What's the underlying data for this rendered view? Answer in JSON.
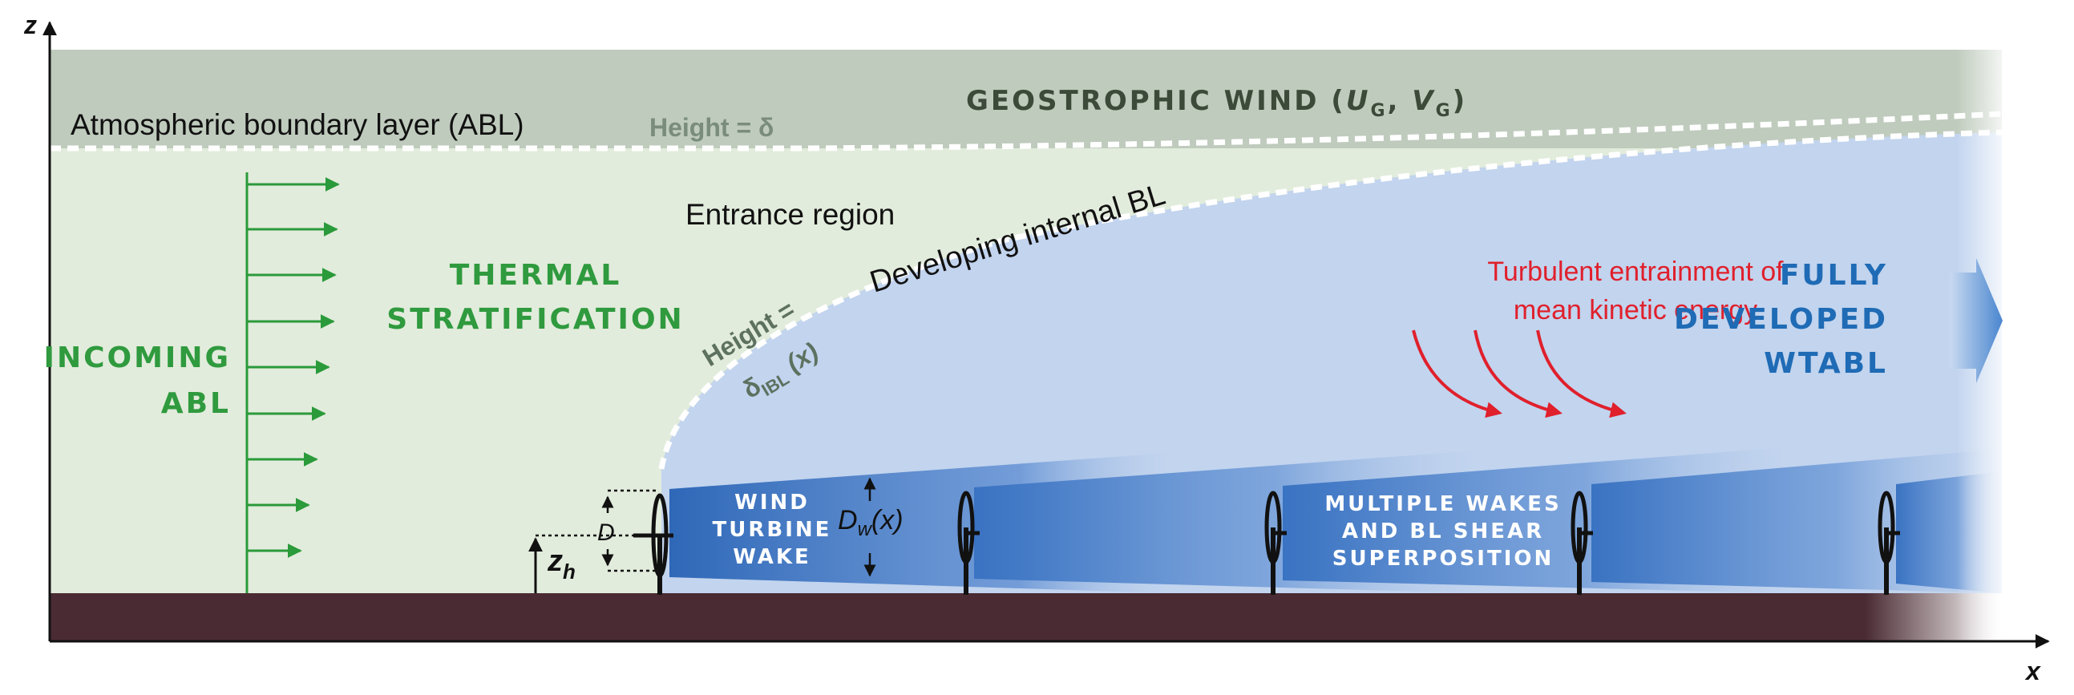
{
  "axes": {
    "z_label": "z",
    "x_label": "x"
  },
  "labels": {
    "geostrophic_wind": "GEOSTROPHIC WIND (",
    "geo_u": "U",
    "geo_u_sub": "G",
    "geo_comma": ", ",
    "geo_v": "V",
    "geo_v_sub": "G",
    "geo_close": ")",
    "abl": "Atmospheric boundary layer (ABL)",
    "height_delta": "Height = δ",
    "entrance_region": "Entrance region",
    "developing_ibl": "Developing internal BL",
    "height_ibl_line1": "Height =",
    "height_ibl_delta": "δ",
    "height_ibl_sub": "IBL",
    "height_ibl_x": " (x)",
    "thermal_line1": "THERMAL",
    "thermal_line2": "STRATIFICATION",
    "incoming_line1": "INCOMING",
    "incoming_line2": "ABL",
    "turbulent_line1": "Turbulent entrainment of",
    "turbulent_line2": "mean kinetic energy",
    "fully_line1": "FULLY",
    "fully_line2": "DEVELOPED",
    "fully_line3": "WTABL",
    "wake_line1": "WIND",
    "wake_line2": "TURBINE",
    "wake_line3": "WAKE",
    "dw_main": "D",
    "dw_sub": "w",
    "dw_x": "(x)",
    "multi_line1": "MULTIPLE WAKES",
    "multi_line2": "AND BL SHEAR",
    "multi_line3": "SUPERPOSITION",
    "d_label": "D",
    "zh_main": "z",
    "zh_sub": "h"
  },
  "colors": {
    "geostrophic_band": "#bfcbbd",
    "abl_region": "#e2ecdc",
    "ibl_region": "#c2d4ee",
    "wake_blue": "#3d78c6",
    "ground": "#4a2b33",
    "green_text": "#2f9a3e",
    "profile_green": "#2a9a3a",
    "red_text": "#e0202c",
    "blue_text": "#1f6bb5",
    "gray_green_text": "#5d7160",
    "dark_green_text": "#3c4a3a"
  }
}
